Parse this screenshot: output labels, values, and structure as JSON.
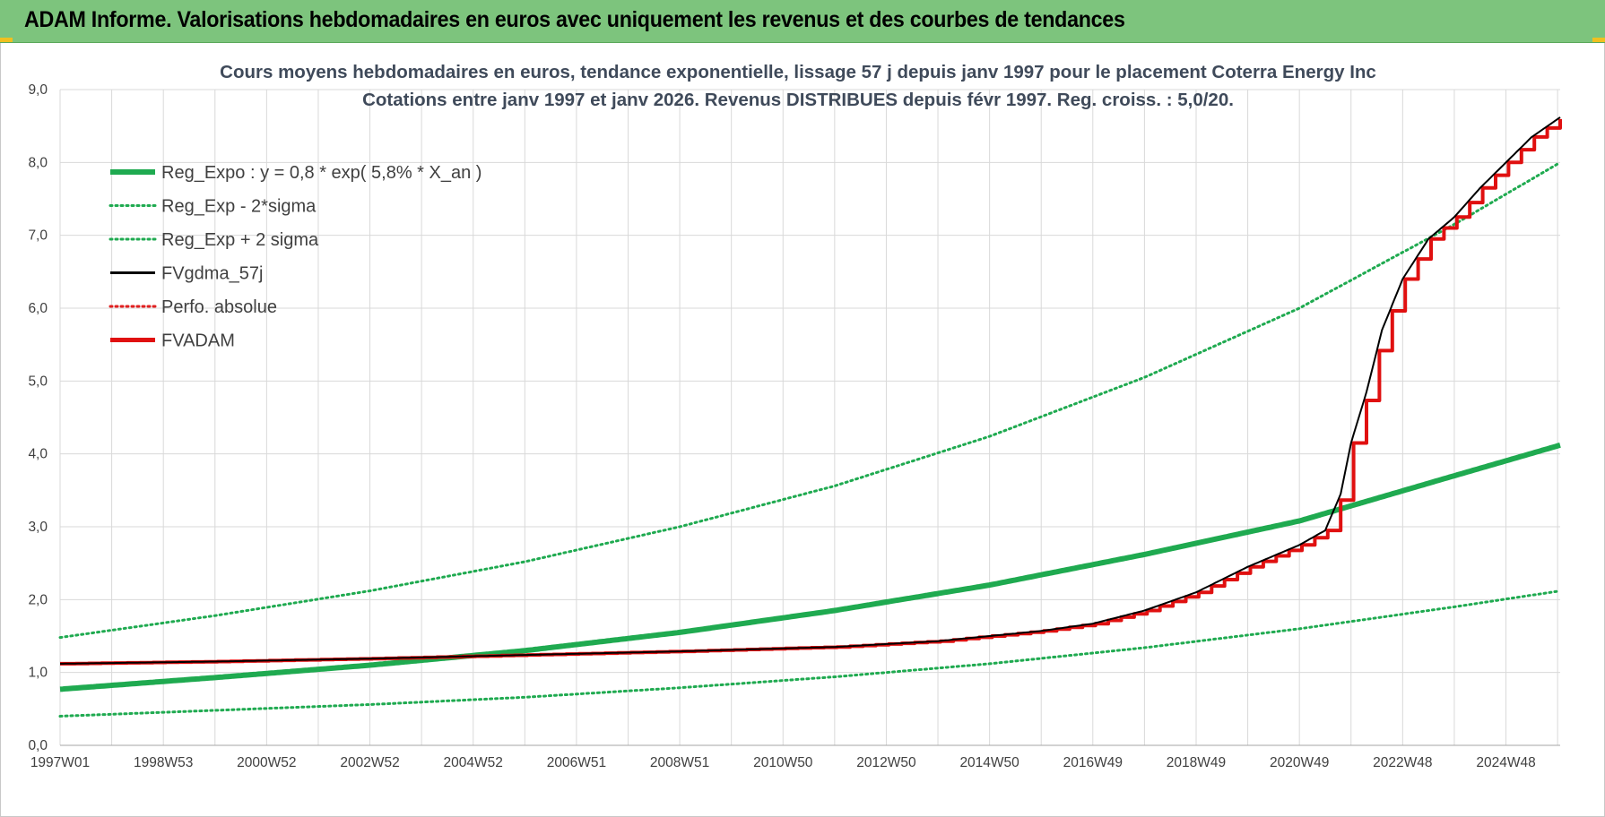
{
  "banner": {
    "title": "ADAM Informe. Valorisations hebdomadaires en euros avec uniquement les revenus et des courbes de tendances"
  },
  "colors": {
    "banner_bg": "#7dc47d",
    "reg_expo": "#1faa50",
    "fvgdma": "#000000",
    "perfo": "#e02020",
    "fvadam": "#e01010",
    "grid": "#d9d9d9"
  },
  "chart_data": {
    "type": "line",
    "title": "Cours moyens hebdomadaires en euros, tendance exponentielle, lissage 57 j depuis janv 1997 pour le placement Coterra Energy Inc",
    "subtitle": "Cotations entre janv 1997 et janv 2026. Revenus DISTRIBUES depuis févr 1997. Reg. croiss. : 5,0/20.",
    "xlabel": "",
    "ylabel": "",
    "x_range": [
      1997.0,
      2026.05
    ],
    "ylim": [
      0,
      9
    ],
    "y_ticks": [
      "0,0",
      "1,0",
      "2,0",
      "3,0",
      "4,0",
      "5,0",
      "6,0",
      "7,0",
      "8,0",
      "9,0"
    ],
    "x_ticks": [
      {
        "label": "1997W01",
        "x": 1997.0
      },
      {
        "label": "1998W53",
        "x": 1999.0
      },
      {
        "label": "2000W52",
        "x": 2001.0
      },
      {
        "label": "2002W52",
        "x": 2003.0
      },
      {
        "label": "2004W52",
        "x": 2005.0
      },
      {
        "label": "2006W51",
        "x": 2007.0
      },
      {
        "label": "2008W51",
        "x": 2009.0
      },
      {
        "label": "2010W50",
        "x": 2011.0
      },
      {
        "label": "2012W50",
        "x": 2013.0
      },
      {
        "label": "2014W50",
        "x": 2015.0
      },
      {
        "label": "2016W49",
        "x": 2017.0
      },
      {
        "label": "2018W49",
        "x": 2019.0
      },
      {
        "label": "2020W49",
        "x": 2021.0
      },
      {
        "label": "2022W48",
        "x": 2023.0
      },
      {
        "label": "2024W48",
        "x": 2025.0
      }
    ],
    "grid": true,
    "legend_position": "top-left",
    "series": [
      {
        "name": "Reg_Expo : y = 0,8 * exp( 5,8% *  X_an )",
        "style": "solid-thick",
        "color": "#1faa50",
        "x": [
          1997.0,
          2000.0,
          2003.0,
          2006.0,
          2009.0,
          2012.0,
          2015.0,
          2018.0,
          2021.0,
          2024.0,
          2026.05
        ],
        "y": [
          0.77,
          0.93,
          1.1,
          1.3,
          1.55,
          1.85,
          2.2,
          2.62,
          3.08,
          3.7,
          4.12
        ]
      },
      {
        "name": "Reg_Exp - 2*sigma",
        "style": "dotted",
        "color": "#1faa50",
        "x": [
          1997.0,
          2000.0,
          2003.0,
          2006.0,
          2009.0,
          2012.0,
          2015.0,
          2018.0,
          2021.0,
          2024.0,
          2026.05
        ],
        "y": [
          0.4,
          0.48,
          0.56,
          0.66,
          0.79,
          0.94,
          1.12,
          1.34,
          1.6,
          1.9,
          2.12
        ]
      },
      {
        "name": "Reg_Exp + 2 sigma",
        "style": "dotted",
        "color": "#1faa50",
        "x": [
          1997.0,
          2000.0,
          2003.0,
          2006.0,
          2009.0,
          2012.0,
          2015.0,
          2018.0,
          2021.0,
          2024.0,
          2026.05
        ],
        "y": [
          1.48,
          1.78,
          2.12,
          2.52,
          3.0,
          3.56,
          4.24,
          5.05,
          6.0,
          7.15,
          8.0
        ]
      },
      {
        "name": "FVgdma_57j",
        "style": "solid",
        "color": "#000000",
        "x": [
          1997.0,
          2000.0,
          2003.0,
          2006.0,
          2009.0,
          2012.0,
          2014.0,
          2016.0,
          2017.0,
          2018.0,
          2019.0,
          2020.0,
          2021.0,
          2021.5,
          2021.8,
          2022.0,
          2022.3,
          2022.6,
          2023.0,
          2023.5,
          2024.0,
          2024.5,
          2025.0,
          2025.5,
          2026.05
        ],
        "y": [
          1.12,
          1.15,
          1.19,
          1.24,
          1.29,
          1.35,
          1.43,
          1.57,
          1.67,
          1.85,
          2.1,
          2.45,
          2.75,
          2.95,
          3.45,
          4.15,
          4.85,
          5.7,
          6.4,
          6.95,
          7.25,
          7.65,
          8.0,
          8.35,
          8.62
        ]
      },
      {
        "name": "Perfo. absolue",
        "style": "dotted",
        "color": "#e02020",
        "x": [],
        "y": []
      },
      {
        "name": "FVADAM",
        "style": "solid-thick-step",
        "color": "#e01010",
        "x": [
          1997.0,
          2000.0,
          2003.0,
          2006.0,
          2009.0,
          2012.0,
          2014.0,
          2016.0,
          2017.0,
          2018.0,
          2019.0,
          2020.0,
          2021.0,
          2021.5,
          2021.8,
          2022.0,
          2022.3,
          2022.6,
          2023.0,
          2023.5,
          2024.0,
          2024.5,
          2025.0,
          2025.5,
          2026.05
        ],
        "y": [
          1.12,
          1.15,
          1.19,
          1.24,
          1.29,
          1.35,
          1.43,
          1.57,
          1.67,
          1.85,
          2.1,
          2.45,
          2.75,
          2.95,
          3.45,
          4.15,
          4.85,
          5.7,
          6.4,
          6.95,
          7.25,
          7.65,
          8.0,
          8.35,
          8.62
        ]
      }
    ]
  }
}
